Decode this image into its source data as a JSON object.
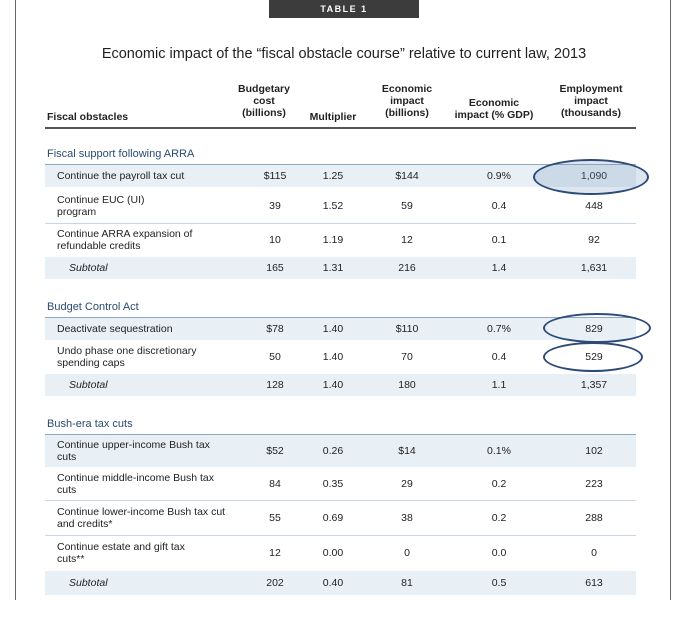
{
  "table_label": "TABLE 1",
  "title": "Economic impact of the “fiscal obstacle course” relative to current law, 2013",
  "headers": {
    "fiscal_obstacles": "Fiscal obstacles",
    "budgetary_cost": [
      "Budgetary",
      "cost",
      "(billions)"
    ],
    "multiplier": "Multiplier",
    "economic_impact": [
      "Economic",
      "impact",
      "(billions)"
    ],
    "economic_impact_gdp": [
      "Economic",
      "impact (% GDP)"
    ],
    "employment_impact": [
      "Employment",
      "impact",
      "(thousands)"
    ]
  },
  "sections": [
    {
      "label": "Fiscal support following ARRA",
      "rows": [
        {
          "label": "Continue the payroll tax cut",
          "cost": "$115",
          "multiplier": "1.25",
          "impact": "$144",
          "gdp": "0.9%",
          "employment": "1,090"
        },
        {
          "label": "Continue EUC (UI) program",
          "cost": "39",
          "multiplier": "1.52",
          "impact": "59",
          "gdp": "0.4",
          "employment": "448"
        },
        {
          "label": "Continue ARRA expansion of refundable credits",
          "cost": "10",
          "multiplier": "1.19",
          "impact": "12",
          "gdp": "0.1",
          "employment": "92"
        },
        {
          "label": "Subtotal",
          "cost": "165",
          "multiplier": "1.31",
          "impact": "216",
          "gdp": "1.4",
          "employment": "1,631"
        }
      ]
    },
    {
      "label": "Budget Control Act",
      "rows": [
        {
          "label": "Deactivate sequestration",
          "cost": "$78",
          "multiplier": "1.40",
          "impact": "$110",
          "gdp": "0.7%",
          "employment": "829"
        },
        {
          "label": "Undo phase one discretionary spending caps",
          "cost": "50",
          "multiplier": "1.40",
          "impact": "70",
          "gdp": "0.4",
          "employment": "529"
        },
        {
          "label": "Subtotal",
          "cost": "128",
          "multiplier": "1.40",
          "impact": "180",
          "gdp": "1.1",
          "employment": "1,357"
        }
      ]
    },
    {
      "label": "Bush-era tax cuts",
      "rows": [
        {
          "label": "Continue upper-income Bush tax cuts",
          "cost": "$52",
          "multiplier": "0.26",
          "impact": "$14",
          "gdp": "0.1%",
          "employment": "102"
        },
        {
          "label": "Continue middle-income Bush tax cuts",
          "cost": "84",
          "multiplier": "0.35",
          "impact": "29",
          "gdp": "0.2",
          "employment": "223"
        },
        {
          "label": "Continue lower-income Bush tax cut and credits*",
          "cost": "55",
          "multiplier": "0.69",
          "impact": "38",
          "gdp": "0.2",
          "employment": "288"
        },
        {
          "label": "Continue estate and gift tax cuts**",
          "cost": "12",
          "multiplier": "0.00",
          "impact": "0",
          "gdp": "0.0",
          "employment": "0"
        },
        {
          "label": "Subtotal",
          "cost": "202",
          "multiplier": "0.40",
          "impact": "81",
          "gdp": "0.5",
          "employment": "613"
        }
      ]
    }
  ],
  "colors": {
    "accent": "#2a4a6f",
    "shade": "#e8f0f6",
    "highlight_ring": "#2e4a78"
  }
}
